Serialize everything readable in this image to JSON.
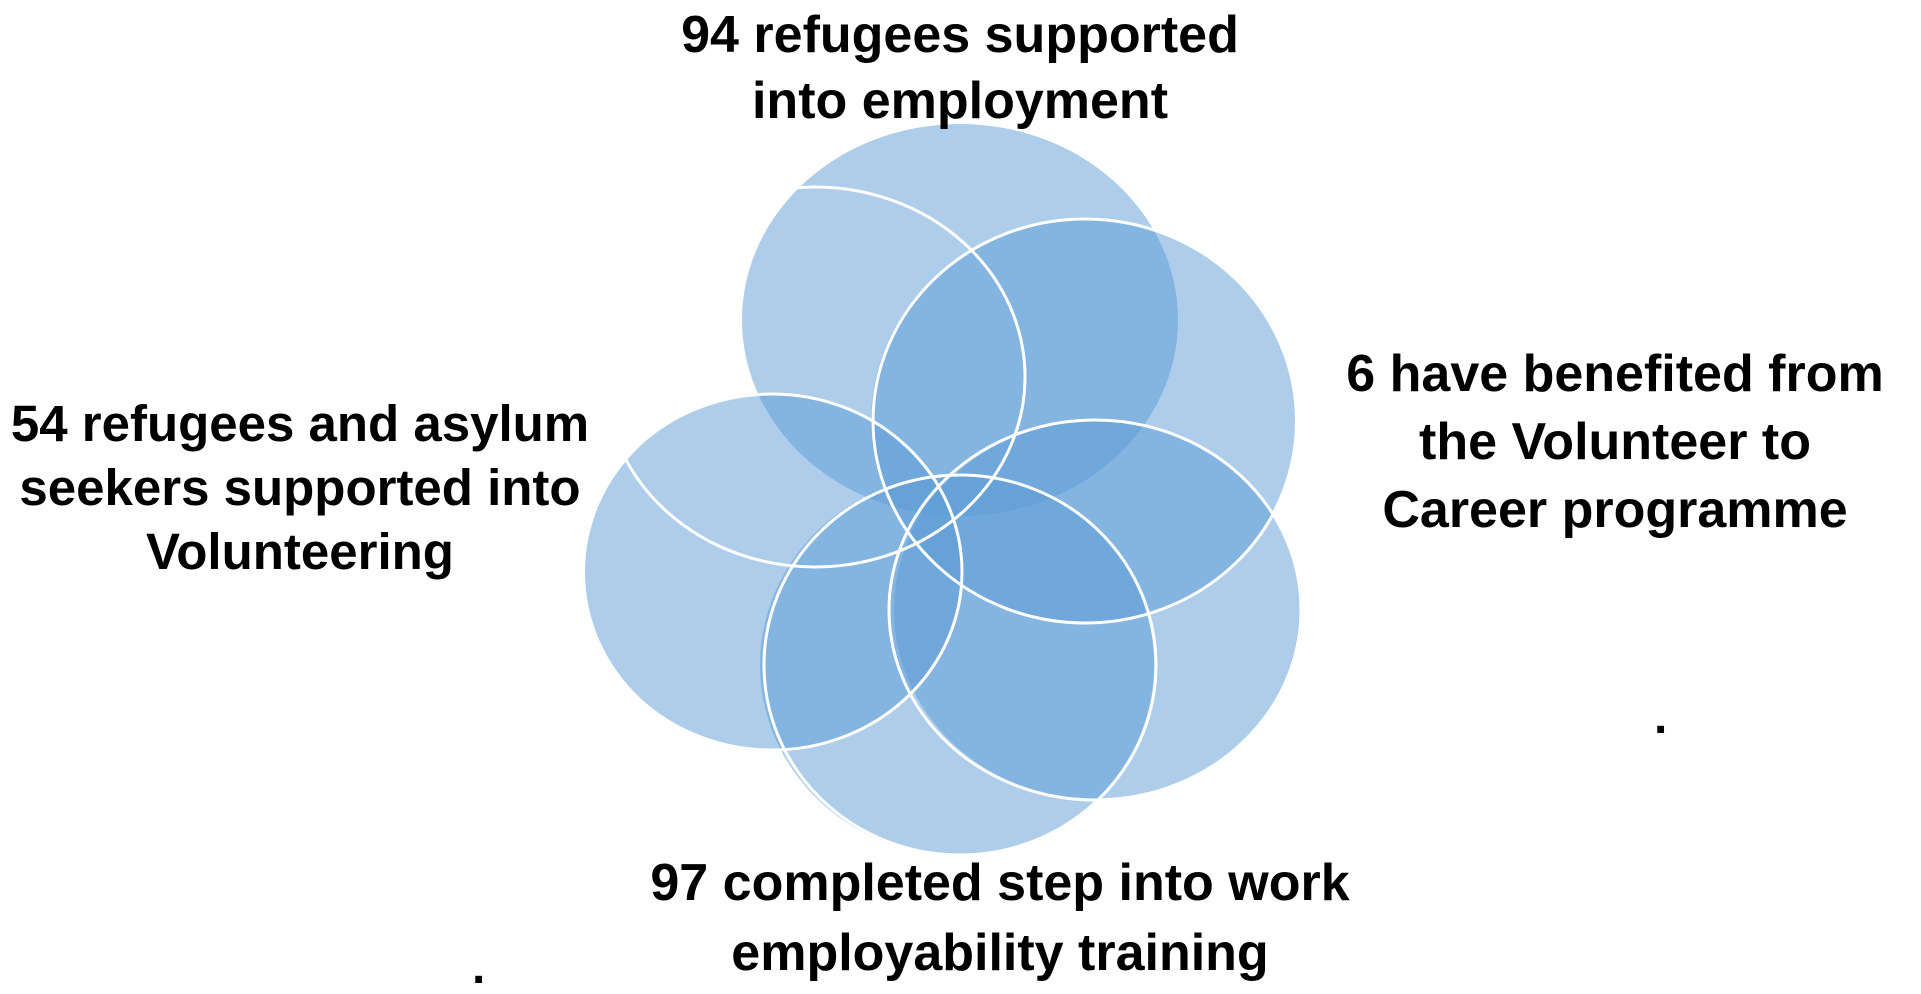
{
  "diagram": {
    "petals": [
      {
        "name": "petal-top"
      },
      {
        "name": "petal-right"
      },
      {
        "name": "petal-bottom-right"
      },
      {
        "name": "petal-bottom-left"
      },
      {
        "name": "petal-left"
      }
    ],
    "labels": {
      "top": [
        "94 refugees supported",
        "into employment"
      ],
      "right": [
        "6 have benefited from",
        "the Volunteer to",
        "Career programme"
      ],
      "left": [
        "54 refugees and asylum",
        "seekers supported into",
        "Volunteering"
      ],
      "bottom": [
        "97 completed step into work",
        "employability training"
      ]
    },
    "stray_marks": {
      "right_dot": ".",
      "left_dot": "."
    },
    "colors": {
      "petal_fill": "#5b9bd5",
      "petal_outline": "#ffffff"
    }
  }
}
